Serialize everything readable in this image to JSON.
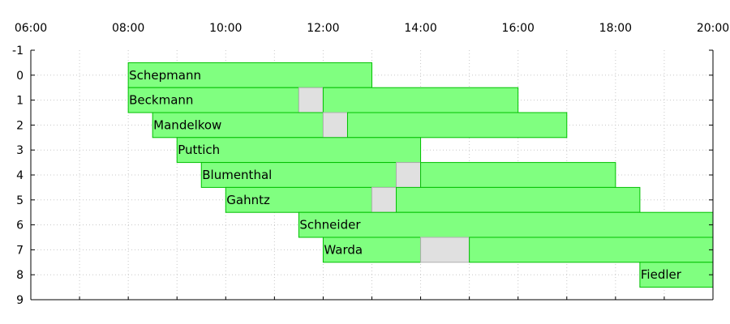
{
  "chart_data": {
    "type": "gantt",
    "title": "",
    "xlabel": "",
    "ylabel": "",
    "x_range": [
      "06:00",
      "20:00"
    ],
    "x_ticks": [
      "06:00",
      "08:00",
      "10:00",
      "12:00",
      "14:00",
      "16:00",
      "18:00",
      "20:00"
    ],
    "y_range": [
      -1,
      9
    ],
    "y_ticks": [
      "-1",
      "0",
      "1",
      "2",
      "3",
      "4",
      "5",
      "6",
      "7",
      "8",
      "9"
    ],
    "grid": true,
    "colors": {
      "work": "#80ff80",
      "work_border": "#00c000",
      "break": "#e0e0e0",
      "break_border": "#b0b0b0"
    },
    "rows": [
      {
        "y": 0,
        "label": "Schepmann",
        "segments": [
          {
            "start": "08:00",
            "end": "13:00",
            "kind": "work"
          }
        ]
      },
      {
        "y": 1,
        "label": "Beckmann",
        "segments": [
          {
            "start": "08:00",
            "end": "11:30",
            "kind": "work"
          },
          {
            "start": "11:30",
            "end": "12:00",
            "kind": "break"
          },
          {
            "start": "12:00",
            "end": "16:00",
            "kind": "work"
          }
        ]
      },
      {
        "y": 2,
        "label": "Mandelkow",
        "segments": [
          {
            "start": "08:30",
            "end": "12:00",
            "kind": "work"
          },
          {
            "start": "12:00",
            "end": "12:30",
            "kind": "break"
          },
          {
            "start": "12:30",
            "end": "17:00",
            "kind": "work"
          }
        ]
      },
      {
        "y": 3,
        "label": "Puttich",
        "segments": [
          {
            "start": "09:00",
            "end": "14:00",
            "kind": "work"
          }
        ]
      },
      {
        "y": 4,
        "label": "Blumenthal",
        "segments": [
          {
            "start": "09:30",
            "end": "13:30",
            "kind": "work"
          },
          {
            "start": "13:30",
            "end": "14:00",
            "kind": "break"
          },
          {
            "start": "14:00",
            "end": "18:00",
            "kind": "work"
          }
        ]
      },
      {
        "y": 5,
        "label": "Gahntz",
        "segments": [
          {
            "start": "10:00",
            "end": "13:00",
            "kind": "work"
          },
          {
            "start": "13:00",
            "end": "13:30",
            "kind": "break"
          },
          {
            "start": "13:30",
            "end": "18:30",
            "kind": "work"
          }
        ]
      },
      {
        "y": 6,
        "label": "Schneider",
        "segments": [
          {
            "start": "11:30",
            "end": "20:00",
            "kind": "work"
          }
        ]
      },
      {
        "y": 7,
        "label": "Warda",
        "segments": [
          {
            "start": "12:00",
            "end": "14:00",
            "kind": "work"
          },
          {
            "start": "14:00",
            "end": "15:00",
            "kind": "break"
          },
          {
            "start": "15:00",
            "end": "20:00",
            "kind": "work"
          }
        ]
      },
      {
        "y": 8,
        "label": "Fiedler",
        "segments": [
          {
            "start": "18:30",
            "end": "20:00",
            "kind": "work"
          }
        ]
      }
    ]
  }
}
